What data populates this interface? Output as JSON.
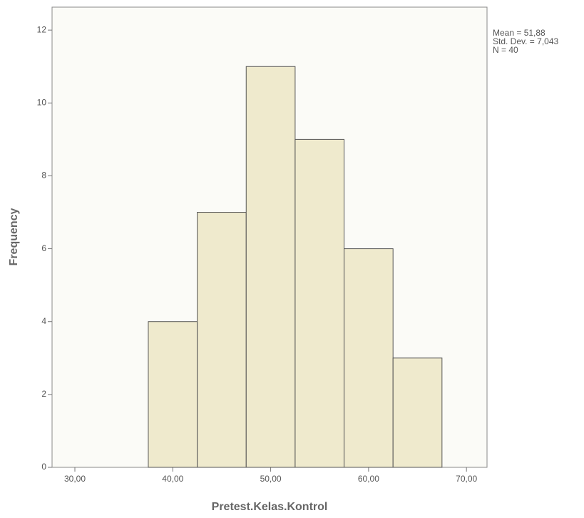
{
  "chart_data": {
    "type": "histogram",
    "x_label": "Pretest.Kelas.Kontrol",
    "y_label": "Frequency",
    "annotations": [
      "Mean = 51,88",
      "Std. Dev. = 7,043",
      "N = 40"
    ],
    "bins": [
      37.5,
      42.5,
      47.5,
      52.5,
      57.5,
      62.5,
      67.5
    ],
    "values": [
      4,
      7,
      11,
      9,
      6,
      3
    ],
    "color": "#ece6c6",
    "xlim": [
      27.67,
      72.1
    ],
    "xticks": [
      {
        "value": 30,
        "label": "30,00"
      },
      {
        "value": 40,
        "label": "40,00"
      },
      {
        "value": 50,
        "label": "50,00"
      },
      {
        "value": 60,
        "label": "60,00"
      },
      {
        "value": 70,
        "label": "70,00"
      }
    ],
    "ylim": [
      0,
      12.63
    ],
    "yticks": [
      0,
      2,
      4,
      6,
      8,
      10,
      12
    ]
  }
}
